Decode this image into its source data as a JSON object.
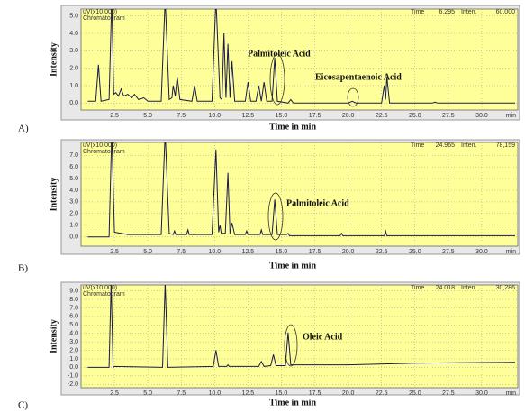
{
  "chart_data": [
    {
      "type": "line",
      "panel_label": "A)",
      "ylabel": "Intensity",
      "xlabel": "Time in min",
      "x_unit": "min",
      "header": {
        "unit": "uV(x10,000)",
        "name": "Chromatogram",
        "time_label": "Time",
        "time": "6.295",
        "inten_label": "Inten.",
        "inten": "60,000"
      },
      "annotations": [
        "Palmitoleic Acid",
        "Eicosapentaenoic Acid"
      ],
      "color": "#1a1a50",
      "background": "#ffff99",
      "xlim": [
        0,
        32.7
      ],
      "ylim": [
        -0.4,
        5.4
      ],
      "xticks": [
        {
          "value": 2.5,
          "label": "2.5"
        },
        {
          "value": 5,
          "label": "5.0"
        },
        {
          "value": 7.5,
          "label": "7.5"
        },
        {
          "value": 10,
          "label": "10.0"
        },
        {
          "value": 12.5,
          "label": "12.5"
        },
        {
          "value": 15,
          "label": "15.0"
        },
        {
          "value": 17.5,
          "label": "17.5"
        },
        {
          "value": 20,
          "label": "20.0"
        },
        {
          "value": 22.5,
          "label": "22.5"
        },
        {
          "value": 25,
          "label": "25.0"
        },
        {
          "value": 27.5,
          "label": "27.5"
        },
        {
          "value": 30,
          "label": "30.0"
        }
      ],
      "yticks": [
        {
          "value": 0,
          "label": "0.0"
        },
        {
          "value": 1,
          "label": "1.0"
        },
        {
          "value": 2,
          "label": "2.0"
        },
        {
          "value": 3,
          "label": "3.0"
        },
        {
          "value": 4,
          "label": "4.0"
        },
        {
          "value": 5,
          "label": "5.0"
        }
      ],
      "x": [
        0.5,
        1.1,
        1.3,
        1.5,
        2.1,
        2.3,
        2.45,
        2.6,
        2.8,
        3.0,
        3.2,
        3.5,
        3.8,
        4.0,
        4.3,
        4.7,
        5.0,
        6.0,
        6.3,
        6.6,
        6.8,
        6.9,
        7.05,
        7.2,
        7.4,
        8.3,
        8.5,
        8.7,
        9.8,
        10.1,
        10.4,
        10.55,
        10.7,
        10.85,
        11.0,
        11.15,
        11.3,
        11.5,
        12.3,
        12.5,
        12.7,
        13.1,
        13.3,
        13.5,
        13.7,
        13.9,
        14.3,
        14.5,
        14.7,
        15.5,
        15.7,
        15.9,
        20.0,
        20.3,
        20.6,
        22.5,
        22.7,
        22.8,
        22.9,
        23.1,
        26.3,
        26.5,
        26.7,
        32.5
      ],
      "values": [
        0.1,
        0.1,
        2.2,
        0.1,
        0.2,
        6,
        0.5,
        0.6,
        0.4,
        0.8,
        0.4,
        0.5,
        0.3,
        0.5,
        0.2,
        0.3,
        0.1,
        0.1,
        6,
        0.2,
        0.3,
        1.0,
        0.4,
        1.5,
        0.2,
        0.1,
        1.0,
        0.1,
        0.1,
        6,
        0.3,
        0.2,
        4.0,
        0.3,
        3.4,
        0.3,
        2.4,
        0.1,
        0.1,
        1.2,
        0.1,
        0.1,
        1.0,
        0.1,
        1.2,
        0.1,
        0.1,
        2.6,
        0.1,
        0.0,
        0.2,
        0.0,
        0.0,
        0.1,
        0.0,
        0.0,
        1.0,
        0.2,
        1.5,
        0.0,
        0.0,
        0.05,
        0.0,
        0.0
      ]
    },
    {
      "type": "line",
      "panel_label": "B)",
      "ylabel": "Intensity",
      "xlabel": "Time in min",
      "x_unit": "min",
      "header": {
        "unit": "uV(x10,000)",
        "name": "Chromatogram",
        "time_label": "Time",
        "time": "24.965",
        "inten_label": "Inten.",
        "inten": "78,159"
      },
      "annotations": [
        "Palmitoleic Acid"
      ],
      "color": "#1a1a50",
      "background": "#ffff99",
      "xlim": [
        0,
        32.7
      ],
      "ylim": [
        -0.8,
        8.1
      ],
      "xticks": [
        {
          "value": 2.5,
          "label": "2.5"
        },
        {
          "value": 5,
          "label": "5.0"
        },
        {
          "value": 7.5,
          "label": "7.5"
        },
        {
          "value": 10,
          "label": "10.0"
        },
        {
          "value": 12.5,
          "label": "12.5"
        },
        {
          "value": 15,
          "label": "15.0"
        },
        {
          "value": 17.5,
          "label": "17.5"
        },
        {
          "value": 20,
          "label": "20.0"
        },
        {
          "value": 22.5,
          "label": "22.5"
        },
        {
          "value": 25,
          "label": "25.0"
        },
        {
          "value": 27.5,
          "label": "27.5"
        },
        {
          "value": 30,
          "label": "30.0"
        }
      ],
      "yticks": [
        {
          "value": 0,
          "label": "0.0"
        },
        {
          "value": 1,
          "label": "1.0"
        },
        {
          "value": 2,
          "label": "2.0"
        },
        {
          "value": 3,
          "label": "3.0"
        },
        {
          "value": 4,
          "label": "4.0"
        },
        {
          "value": 5,
          "label": "5.0"
        },
        {
          "value": 6,
          "label": "6.0"
        },
        {
          "value": 7,
          "label": "7.0"
        }
      ],
      "x": [
        0.5,
        2.1,
        2.3,
        2.5,
        3.0,
        3.5,
        6.0,
        6.3,
        6.6,
        6.9,
        7.0,
        7.1,
        7.9,
        8.0,
        8.1,
        9.8,
        10.1,
        10.3,
        10.4,
        10.5,
        10.8,
        11.0,
        11.15,
        11.3,
        11.5,
        12.3,
        12.4,
        12.5,
        13.4,
        13.5,
        13.6,
        14.3,
        14.5,
        14.7,
        15.4,
        15.5,
        15.6,
        19.4,
        19.5,
        19.6,
        22.7,
        22.8,
        22.9,
        32.5
      ],
      "values": [
        0.0,
        0.0,
        9,
        0.4,
        0.3,
        0.2,
        0.2,
        9,
        0.3,
        0.2,
        0.5,
        0.2,
        0.2,
        0.6,
        0.2,
        0.2,
        7.5,
        0.4,
        1.0,
        0.3,
        0.3,
        5.5,
        0.3,
        1.2,
        0.2,
        0.2,
        0.5,
        0.2,
        0.2,
        0.6,
        0.2,
        0.2,
        3.2,
        0.2,
        0.2,
        0.3,
        0.1,
        0.1,
        0.3,
        0.1,
        0.1,
        0.5,
        0.1,
        0.1
      ]
    },
    {
      "type": "line",
      "panel_label": "C)",
      "ylabel": "Intensity",
      "xlabel": "Time in min",
      "x_unit": "min",
      "header": {
        "unit": "uV(x10,000)",
        "name": "Chromatogram",
        "time_label": "Time",
        "time": "24.018",
        "inten_label": "Inten.",
        "inten": "30,286"
      },
      "annotations": [
        "Oleic Acid"
      ],
      "color": "#1a1a50",
      "background": "#ffff99",
      "xlim": [
        0,
        32.7
      ],
      "ylim": [
        -2.4,
        9.7
      ],
      "xticks": [
        {
          "value": 2.5,
          "label": "2.5"
        },
        {
          "value": 5,
          "label": "5.0"
        },
        {
          "value": 7.5,
          "label": "7.5"
        },
        {
          "value": 10,
          "label": "10.0"
        },
        {
          "value": 12.5,
          "label": "12.5"
        },
        {
          "value": 15,
          "label": "15.0"
        },
        {
          "value": 17.5,
          "label": "17.5"
        },
        {
          "value": 20,
          "label": "20.0"
        },
        {
          "value": 22.5,
          "label": "22.5"
        },
        {
          "value": 25,
          "label": "25.0"
        },
        {
          "value": 27.5,
          "label": "27.5"
        },
        {
          "value": 30,
          "label": "30.0"
        }
      ],
      "yticks": [
        {
          "value": -2,
          "label": "-2.0"
        },
        {
          "value": -1,
          "label": "-1.0"
        },
        {
          "value": 0,
          "label": "0.0"
        },
        {
          "value": 1,
          "label": "1.0"
        },
        {
          "value": 2,
          "label": "2.0"
        },
        {
          "value": 3,
          "label": "3.0"
        },
        {
          "value": 4,
          "label": "4.0"
        },
        {
          "value": 5,
          "label": "5.0"
        },
        {
          "value": 6,
          "label": "6.0"
        },
        {
          "value": 7,
          "label": "7.0"
        },
        {
          "value": 8,
          "label": "8.0"
        },
        {
          "value": 9,
          "label": "9.0"
        }
      ],
      "x": [
        0.5,
        2.1,
        2.25,
        2.4,
        2.5,
        6.1,
        6.3,
        6.5,
        9.9,
        10.1,
        10.3,
        10.9,
        11.0,
        11.1,
        13.3,
        13.5,
        13.7,
        14.2,
        14.4,
        14.6,
        15.3,
        15.5,
        15.7,
        20,
        25,
        32.5
      ],
      "values": [
        0.0,
        0.0,
        10,
        0.0,
        0.1,
        0.0,
        10,
        0.0,
        0.1,
        2.0,
        0.1,
        0.1,
        0.3,
        0.1,
        0.1,
        0.7,
        0.1,
        0.2,
        1.5,
        0.2,
        0.2,
        4.1,
        0.3,
        0.3,
        0.5,
        0.6
      ]
    }
  ]
}
